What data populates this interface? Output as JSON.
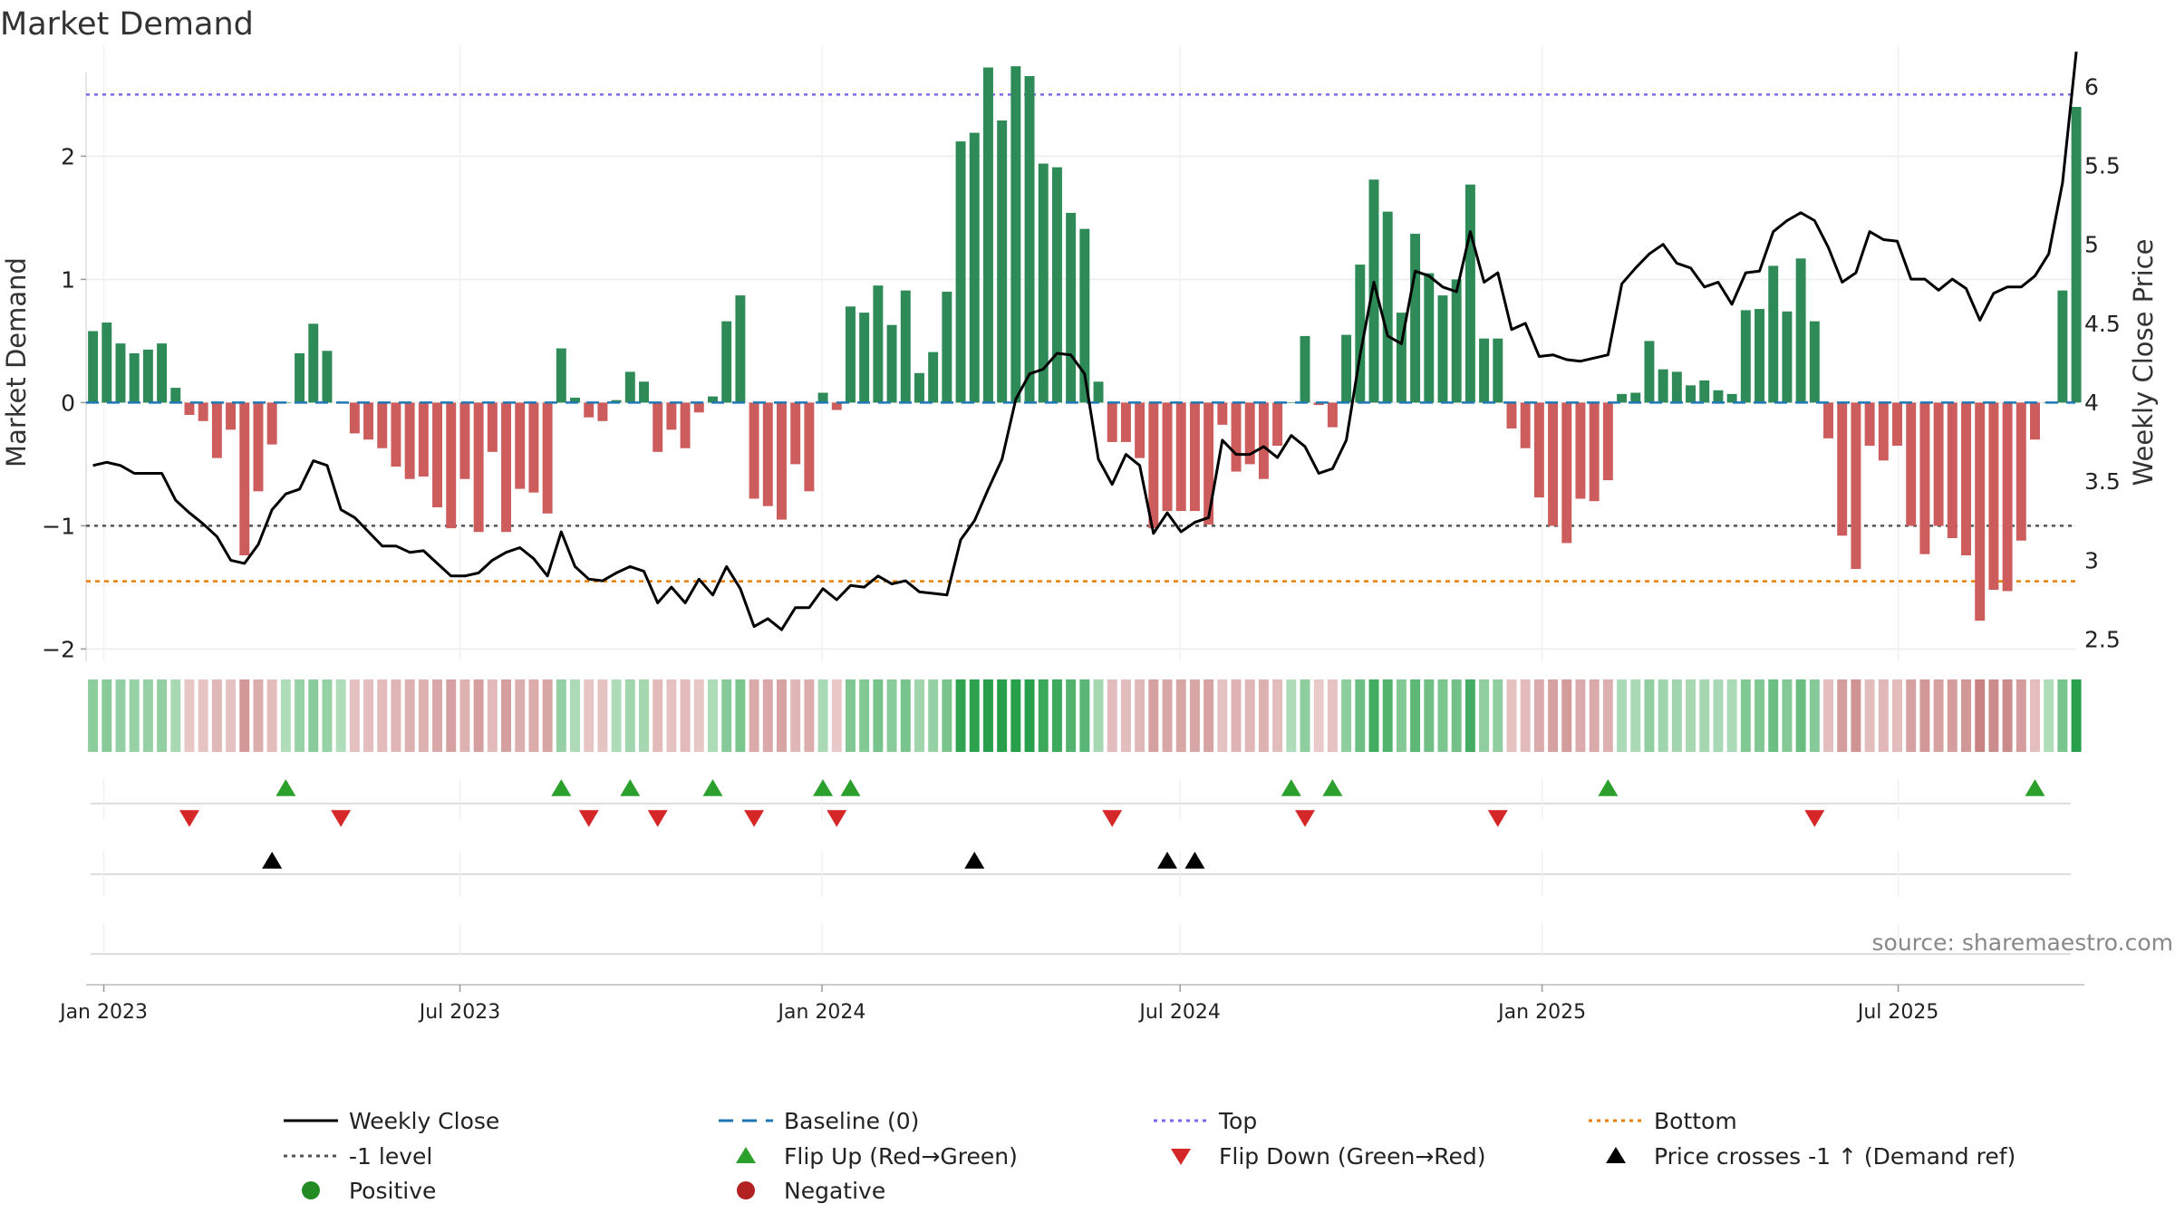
{
  "chart_data": {
    "type": "bar",
    "title": "Market Demand",
    "ylabel": "Market Demand",
    "y2label": "Weekly Close Price",
    "source": "source: sharemaestro.com",
    "ylim": [
      -2.1,
      2.9
    ],
    "y_ticks": [
      "2",
      "1",
      "0",
      "−1",
      "−2"
    ],
    "y2lim": [
      2.36,
      6.26
    ],
    "y2_ticks": [
      "6",
      "5.5",
      "5",
      "4.5",
      "4",
      "3.5",
      "3",
      "2.5"
    ],
    "x_start": "2022-12-23",
    "x_end": "2025-09-29",
    "x_tick_labels": [
      "Jan 2023",
      "Jul 2023",
      "Jan 2024",
      "Jul 2024",
      "Jan 2025",
      "Jul 2025"
    ],
    "x_tick_dates": [
      "2023-01-01",
      "2023-07-01",
      "2024-01-01",
      "2024-07-01",
      "2025-01-01",
      "2025-07-01"
    ],
    "top_level": 2.5,
    "minus_one_level": -1,
    "bottom_level": -1.45,
    "grid": true,
    "legend_position": "bottom",
    "colors": {
      "positive_bar": "#2e8b57",
      "negative_bar": "#cd5c5c",
      "price_line": "#000000",
      "baseline": "#1f77b4",
      "top_line": "#7b68ee",
      "minus_one_line": "#555555",
      "bottom_line": "#e67e00",
      "flip_up": "#2ca02c",
      "flip_down": "#d62728",
      "cross_marker": "#000000",
      "positive_dot": "#228b22",
      "negative_dot": "#b22222"
    },
    "series": [
      {
        "name": "Market Demand",
        "kind": "bar",
        "values": [
          0.58,
          0.65,
          0.48,
          0.4,
          0.43,
          0.48,
          0.12,
          -0.1,
          -0.15,
          -0.45,
          -0.22,
          -1.24,
          -0.72,
          -0.34,
          0.0,
          0.4,
          0.64,
          0.42,
          0.0,
          -0.25,
          -0.3,
          -0.37,
          -0.52,
          -0.62,
          -0.6,
          -0.85,
          -1.02,
          -0.62,
          -1.05,
          -0.4,
          -1.05,
          -0.7,
          -0.73,
          -0.9,
          0.44,
          0.04,
          -0.12,
          -0.15,
          0.02,
          0.25,
          0.17,
          -0.4,
          -0.22,
          -0.37,
          -0.08,
          0.05,
          0.66,
          0.87,
          -0.78,
          -0.84,
          -0.95,
          -0.5,
          -0.72,
          0.08,
          -0.06,
          0.78,
          0.73,
          0.95,
          0.63,
          0.91,
          0.24,
          0.41,
          0.9,
          2.12,
          2.19,
          2.72,
          2.29,
          2.73,
          2.65,
          1.94,
          1.91,
          1.54,
          1.41,
          0.17,
          -0.32,
          -0.32,
          -0.45,
          -1.02,
          -0.88,
          -0.88,
          -0.88,
          -0.99,
          -0.18,
          -0.56,
          -0.5,
          -0.62,
          -0.35,
          0.0,
          0.54,
          -0.02,
          -0.2,
          0.55,
          1.12,
          1.81,
          1.55,
          0.73,
          1.37,
          1.05,
          0.87,
          1.0,
          1.77,
          0.52,
          0.52,
          -0.21,
          -0.37,
          -0.77,
          -1.0,
          -1.14,
          -0.78,
          -0.8,
          -0.63,
          0.07,
          0.08,
          0.5,
          0.27,
          0.25,
          0.14,
          0.18,
          0.1,
          0.07,
          0.75,
          0.76,
          1.11,
          0.74,
          1.17,
          0.66,
          -0.29,
          -1.08,
          -1.35,
          -0.35,
          -0.47,
          -0.35,
          -1.0,
          -1.23,
          -1.0,
          -1.1,
          -1.24,
          -1.77,
          -1.52,
          -1.53,
          -1.12,
          -0.3,
          0.0,
          0.91,
          2.4
        ]
      },
      {
        "name": "Weekly Close",
        "kind": "line",
        "axis": "right",
        "values": [
          3.6,
          3.62,
          3.6,
          3.55,
          3.55,
          3.55,
          3.38,
          3.3,
          3.23,
          3.15,
          3.0,
          2.98,
          3.1,
          3.32,
          3.42,
          3.45,
          3.63,
          3.6,
          3.32,
          3.27,
          3.18,
          3.09,
          3.09,
          3.05,
          3.06,
          2.98,
          2.9,
          2.9,
          2.92,
          3.0,
          3.05,
          3.08,
          3.01,
          2.9,
          3.18,
          2.96,
          2.88,
          2.87,
          2.92,
          2.96,
          2.93,
          2.73,
          2.83,
          2.73,
          2.88,
          2.78,
          2.96,
          2.82,
          2.58,
          2.63,
          2.56,
          2.7,
          2.7,
          2.82,
          2.75,
          2.84,
          2.83,
          2.9,
          2.85,
          2.87,
          2.8,
          2.79,
          2.78,
          3.13,
          3.25,
          3.45,
          3.64,
          4.02,
          4.18,
          4.21,
          4.31,
          4.3,
          4.18,
          3.64,
          3.48,
          3.67,
          3.6,
          3.17,
          3.3,
          3.18,
          3.24,
          3.27,
          3.76,
          3.67,
          3.67,
          3.72,
          3.65,
          3.79,
          3.72,
          3.55,
          3.58,
          3.76,
          4.3,
          4.76,
          4.42,
          4.37,
          4.83,
          4.8,
          4.73,
          4.7,
          5.08,
          4.76,
          4.82,
          4.46,
          4.5,
          4.29,
          4.3,
          4.27,
          4.26,
          4.28,
          4.3,
          4.75,
          4.85,
          4.94,
          5.0,
          4.88,
          4.85,
          4.73,
          4.76,
          4.62,
          4.82,
          4.83,
          5.08,
          5.15,
          5.2,
          5.15,
          4.98,
          4.76,
          4.82,
          5.08,
          5.03,
          5.02,
          4.78,
          4.78,
          4.71,
          4.78,
          4.72,
          4.52,
          4.69,
          4.73,
          4.73,
          4.8,
          4.94,
          5.39,
          6.22
        ]
      }
    ],
    "demand_heat_row": "one color cell per week, shade follows the Market Demand value",
    "flip_up_weeks": [
      14,
      34,
      39,
      45,
      53,
      55,
      87,
      90,
      110,
      141
    ],
    "flip_down_weeks": [
      7,
      18,
      36,
      41,
      48,
      54,
      74,
      88,
      102,
      125
    ],
    "price_cross_weeks": [
      13,
      64,
      78,
      80
    ],
    "legend": [
      {
        "label": "Weekly Close",
        "marker": "line",
        "color": "#000000"
      },
      {
        "label": "Baseline (0)",
        "marker": "dash",
        "color": "#1f77b4"
      },
      {
        "label": "Top",
        "marker": "dot-line",
        "color": "#7b68ee"
      },
      {
        "label": "Bottom",
        "marker": "dot-line",
        "color": "#e67e00"
      },
      {
        "label": "-1 level",
        "marker": "dot-line",
        "color": "#555555"
      },
      {
        "label": "Flip Up (Red→Green)",
        "marker": "triangle-up",
        "color": "#2ca02c"
      },
      {
        "label": "Flip Down (Green→Red)",
        "marker": "triangle-down",
        "color": "#d62728"
      },
      {
        "label": "Price crosses -1 ↑ (Demand ref)",
        "marker": "triangle-up",
        "color": "#000000"
      },
      {
        "label": "Positive",
        "marker": "circle",
        "color": "#228b22"
      },
      {
        "label": "Negative",
        "marker": "circle",
        "color": "#b22222"
      }
    ]
  }
}
